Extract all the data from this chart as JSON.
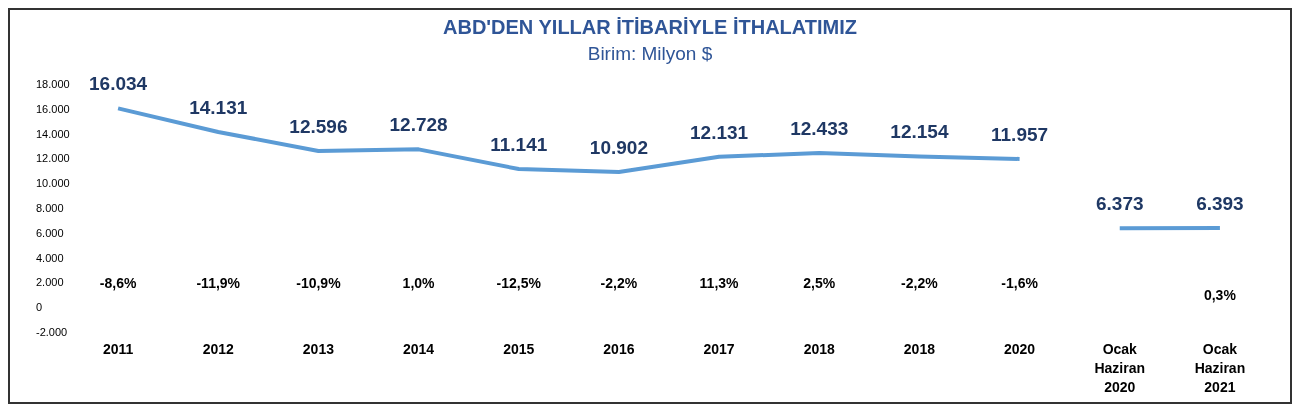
{
  "chart_data": {
    "type": "line",
    "title": "ABD'DEN YILLAR İTİBARİYLE İTHALATIMIZ",
    "subtitle": "Birim: Milyon $",
    "categories": [
      "2011",
      "2012",
      "2013",
      "2014",
      "2015",
      "2016",
      "2017",
      "2018",
      "2018",
      "2020",
      "Ocak\nHaziran\n2020",
      "Ocak\nHaziran\n2021"
    ],
    "series": [
      {
        "color": "#5b9bd5",
        "values": [
          16034,
          14131,
          12596,
          12728,
          11141,
          10902,
          12131,
          12433,
          12154,
          11957,
          null,
          null
        ],
        "value_labels": [
          "16.034",
          "14.131",
          "12.596",
          "12.728",
          "11.141",
          "10.902",
          "12.131",
          "12.433",
          "12.154",
          "11.957",
          null,
          null
        ]
      },
      {
        "color": "#5b9bd5",
        "values": [
          null,
          null,
          null,
          null,
          null,
          null,
          null,
          null,
          null,
          null,
          6373,
          6393
        ],
        "value_labels": [
          null,
          null,
          null,
          null,
          null,
          null,
          null,
          null,
          null,
          null,
          "6.373",
          "6.393"
        ]
      }
    ],
    "ylim": [
      -2000,
      18000
    ],
    "yticks": [
      {
        "value": -2000,
        "label": "-2.000"
      },
      {
        "value": 0,
        "label": "0"
      },
      {
        "value": 2000,
        "label": "2.000"
      },
      {
        "value": 4000,
        "label": "4.000"
      },
      {
        "value": 6000,
        "label": "6.000"
      },
      {
        "value": 8000,
        "label": "8.000"
      },
      {
        "value": 10000,
        "label": "10.000"
      },
      {
        "value": 12000,
        "label": "12.000"
      },
      {
        "value": 14000,
        "label": "14.000"
      },
      {
        "value": 16000,
        "label": "16.000"
      },
      {
        "value": 18000,
        "label": "18.000"
      }
    ],
    "annotations": [
      "-8,6%",
      "-11,9%",
      "-10,9%",
      "1,0%",
      "-12,5%",
      "-2,2%",
      "11,3%",
      "2,5%",
      "-2,2%",
      "-1,6%",
      "0,3%"
    ],
    "grid": false,
    "legend": false,
    "marker": "none",
    "line_style": "solid"
  }
}
